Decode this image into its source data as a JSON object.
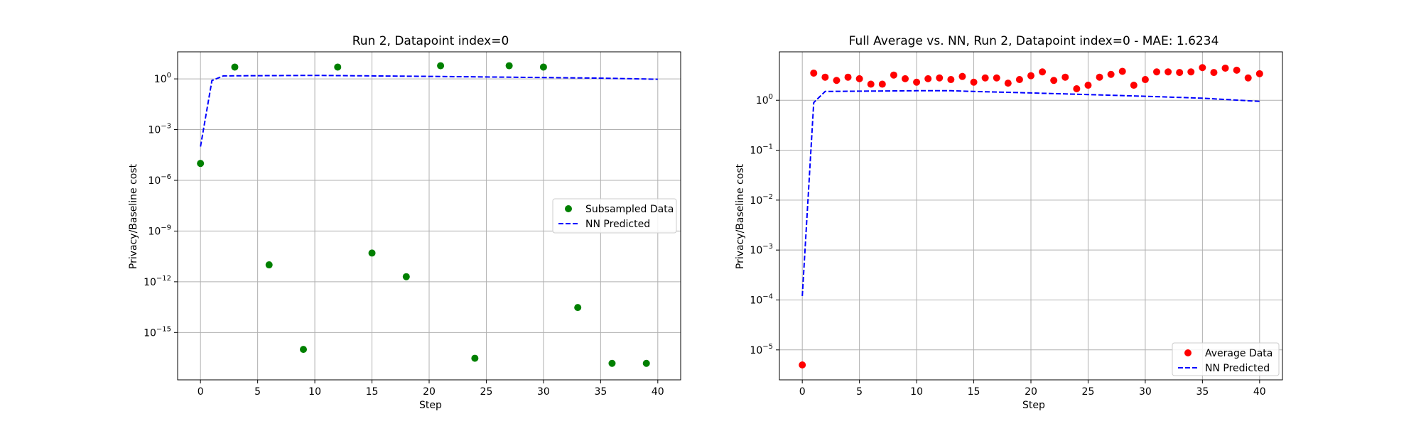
{
  "chart_data": [
    {
      "type": "scatter",
      "title": "Run 2, Datapoint index=0",
      "xlabel": "Step",
      "ylabel": "Privacy/Baseline cost",
      "xlim": [
        -2,
        42
      ],
      "ylim_log10": [
        -17.8,
        1.6
      ],
      "yscale": "log",
      "grid": true,
      "legend_position": "center-right",
      "xticks": [
        0,
        5,
        10,
        15,
        20,
        25,
        30,
        35,
        40
      ],
      "yticks_exp": [
        0,
        -3,
        -6,
        -9,
        -12,
        -15
      ],
      "series": [
        {
          "name": "Subsampled Data",
          "style": "marker",
          "color": "#008000",
          "x": [
            0,
            3,
            6,
            9,
            12,
            15,
            18,
            21,
            24,
            27,
            30,
            33,
            36,
            39
          ],
          "y": [
            1e-05,
            5,
            1e-11,
            1e-16,
            5,
            5e-11,
            2e-12,
            6,
            3e-17,
            6,
            5,
            3e-14,
            1.5e-17,
            1.5e-17
          ]
        },
        {
          "name": "NN Predicted",
          "style": "dashed",
          "color": "#0000ff",
          "x": [
            0,
            1,
            2,
            5,
            10,
            15,
            20,
            25,
            30,
            35,
            40
          ],
          "y": [
            0.0001,
            0.8,
            1.5,
            1.55,
            1.6,
            1.5,
            1.4,
            1.3,
            1.2,
            1.1,
            0.95
          ]
        }
      ]
    },
    {
      "type": "scatter",
      "title": "Full Average vs. NN, Run 2, Datapoint index=0 - MAE: 1.6234",
      "xlabel": "Step",
      "ylabel": "Privacy/Baseline cost",
      "xlim": [
        -2,
        42
      ],
      "ylim_log10": [
        -5.6,
        0.97
      ],
      "yscale": "log",
      "grid": true,
      "legend_position": "lower-right",
      "xticks": [
        0,
        5,
        10,
        15,
        20,
        25,
        30,
        35,
        40
      ],
      "yticks_exp": [
        0,
        -1,
        -2,
        -3,
        -4,
        -5
      ],
      "series": [
        {
          "name": "Average Data",
          "style": "marker",
          "color": "#ff0000",
          "x": [
            0,
            1,
            2,
            3,
            4,
            5,
            6,
            7,
            8,
            9,
            10,
            11,
            12,
            13,
            14,
            15,
            16,
            17,
            18,
            19,
            20,
            21,
            22,
            23,
            24,
            25,
            26,
            27,
            28,
            29,
            30,
            31,
            32,
            33,
            34,
            35,
            36,
            37,
            38,
            39,
            40
          ],
          "y": [
            5e-06,
            3.5,
            2.9,
            2.5,
            2.9,
            2.7,
            2.1,
            2.1,
            3.2,
            2.7,
            2.3,
            2.7,
            2.8,
            2.6,
            3.0,
            2.3,
            2.8,
            2.8,
            2.2,
            2.6,
            3.1,
            3.7,
            2.5,
            2.9,
            1.7,
            2.0,
            2.9,
            3.3,
            3.8,
            2.0,
            2.6,
            3.7,
            3.7,
            3.6,
            3.7,
            4.5,
            3.6,
            4.4,
            4.0,
            2.8,
            3.4
          ]
        },
        {
          "name": "NN Predicted",
          "style": "dashed",
          "color": "#0000ff",
          "x": [
            0,
            1,
            2,
            5,
            10,
            13,
            15,
            20,
            25,
            30,
            35,
            40
          ],
          "y": [
            0.00012,
            0.9,
            1.5,
            1.52,
            1.55,
            1.55,
            1.5,
            1.4,
            1.3,
            1.2,
            1.1,
            0.95
          ]
        }
      ]
    }
  ]
}
